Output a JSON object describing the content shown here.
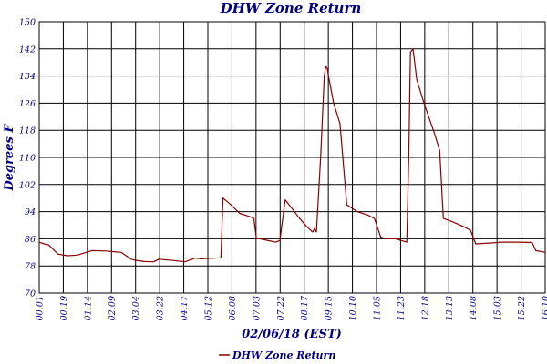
{
  "colors": {
    "series": "#8b0000",
    "text": "#000080",
    "grid": "#000000",
    "background": "#ffffff"
  },
  "chart_data": {
    "type": "line",
    "title": "DHW Zone Return",
    "xlabel": "02/06/18 (EST)",
    "ylabel": "Degrees F",
    "ylim": [
      70,
      150
    ],
    "yticks": [
      70,
      78,
      86,
      94,
      102,
      110,
      118,
      126,
      134,
      142,
      150
    ],
    "xlim": [
      "00:01",
      "16:10"
    ],
    "xticks": [
      "00:01",
      "00:19",
      "01:14",
      "02:09",
      "03:04",
      "03:22",
      "04:17",
      "05:12",
      "06:08",
      "07:03",
      "07:22",
      "08:17",
      "09:15",
      "10:10",
      "11:05",
      "11:23",
      "12:18",
      "13:13",
      "14:08",
      "15:03",
      "15:22",
      "16:10"
    ],
    "grid": true,
    "legend": {
      "position": "bottom-center",
      "entries": [
        "DHW Zone Return"
      ]
    },
    "series": [
      {
        "name": "DHW Zone Return",
        "points": [
          [
            "00:01",
            85
          ],
          [
            "00:10",
            84.5
          ],
          [
            "00:19",
            84.2
          ],
          [
            "00:37",
            81.5
          ],
          [
            "00:55",
            81
          ],
          [
            "01:14",
            81.2
          ],
          [
            "01:42",
            82.5
          ],
          [
            "02:09",
            82.4
          ],
          [
            "02:38",
            82
          ],
          [
            "02:57",
            80
          ],
          [
            "03:04",
            79.7
          ],
          [
            "03:22",
            79.3
          ],
          [
            "03:40",
            79.2
          ],
          [
            "03:50",
            80
          ],
          [
            "04:17",
            79.6
          ],
          [
            "04:40",
            79.2
          ],
          [
            "05:00",
            80.3
          ],
          [
            "05:12",
            80.1
          ],
          [
            "05:35",
            80.3
          ],
          [
            "05:49",
            80.4
          ],
          [
            "05:53",
            98
          ],
          [
            "06:08",
            96
          ],
          [
            "06:25",
            93.5
          ],
          [
            "06:45",
            92.5
          ],
          [
            "06:52",
            92
          ],
          [
            "06:57",
            86
          ],
          [
            "07:03",
            86
          ],
          [
            "07:22",
            85.4
          ],
          [
            "07:34",
            85
          ],
          [
            "07:42",
            85.5
          ],
          [
            "07:52",
            97.5
          ],
          [
            "08:10",
            94
          ],
          [
            "08:17",
            92.5
          ],
          [
            "08:32",
            89.8
          ],
          [
            "08:43",
            88.2
          ],
          [
            "08:45",
            88
          ],
          [
            "08:48",
            89
          ],
          [
            "08:52",
            88
          ],
          [
            "09:00",
            110
          ],
          [
            "09:07",
            134
          ],
          [
            "09:10",
            137
          ],
          [
            "09:13",
            136
          ],
          [
            "09:15",
            134
          ],
          [
            "09:25",
            126
          ],
          [
            "09:37",
            120
          ],
          [
            "09:50",
            96
          ],
          [
            "10:10",
            94
          ],
          [
            "10:30",
            93
          ],
          [
            "10:43",
            92
          ],
          [
            "10:55",
            86.5
          ],
          [
            "11:05",
            86
          ],
          [
            "11:23",
            86
          ],
          [
            "11:45",
            85
          ],
          [
            "11:49",
            112
          ],
          [
            "11:52",
            141
          ],
          [
            "11:57",
            142
          ],
          [
            "12:04",
            133
          ],
          [
            "12:18",
            126
          ],
          [
            "12:38",
            117
          ],
          [
            "12:48",
            112
          ],
          [
            "12:55",
            92
          ],
          [
            "13:13",
            91
          ],
          [
            "13:35",
            89.5
          ],
          [
            "13:47",
            88.5
          ],
          [
            "13:57",
            84.5
          ],
          [
            "14:08",
            84.6
          ],
          [
            "14:30",
            84.8
          ],
          [
            "14:45",
            85
          ],
          [
            "15:03",
            85
          ],
          [
            "15:22",
            85
          ],
          [
            "15:45",
            84.9
          ],
          [
            "15:52",
            82.5
          ],
          [
            "16:10",
            82
          ]
        ]
      }
    ]
  }
}
